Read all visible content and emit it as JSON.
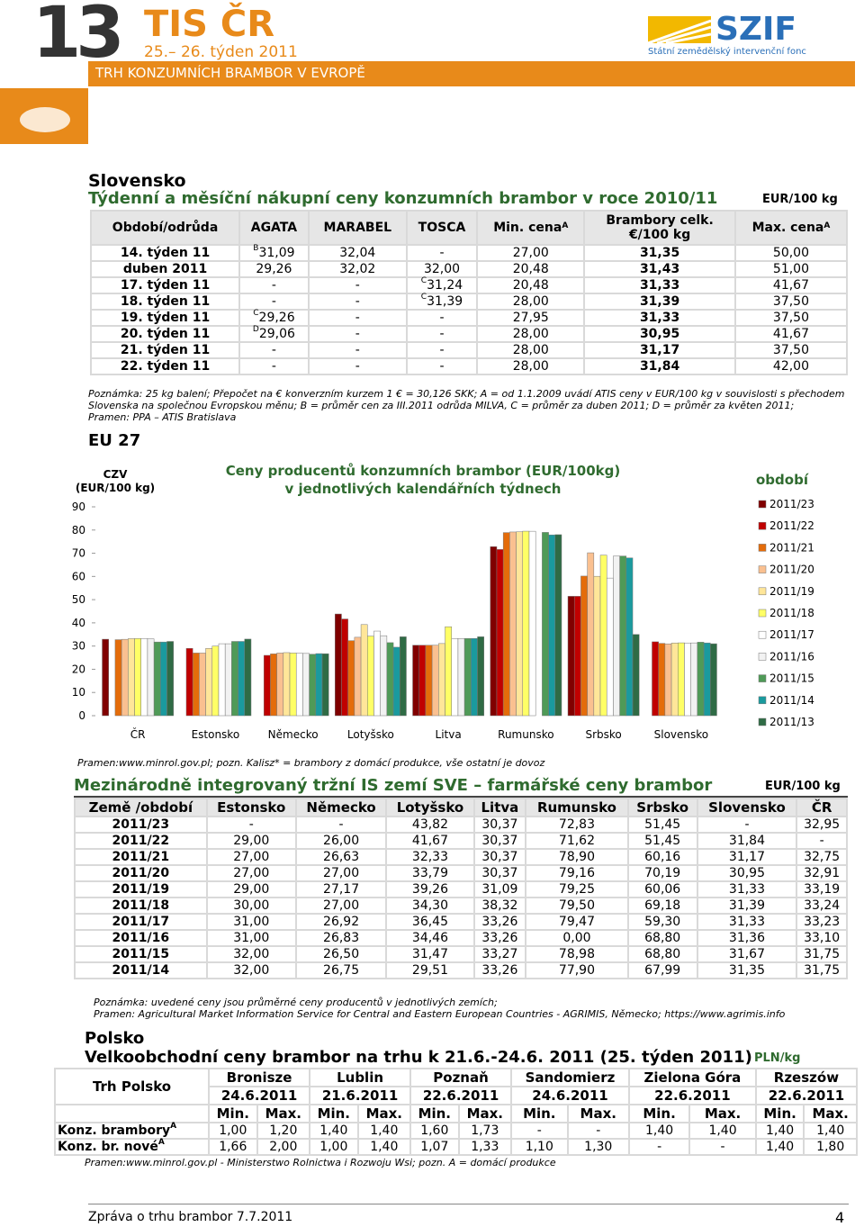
{
  "header": {
    "number": "13",
    "brand": "TIS ČR",
    "weeks": "25.– 26. týden 2011",
    "subtitle": "TRH KONZUMNÍCH BRAMBOR V EVROPĚ",
    "logo": "SZIF",
    "logo_text": "Státní zemědělský intervenční fonc"
  },
  "slovensko": {
    "country": "Slovensko",
    "title": "Týdenní a měsíční nákupní ceny konzumních brambor v roce 2010/11",
    "unit": "EUR/100 kg",
    "columns": [
      "Období/odrůda",
      "AGATA",
      "MARABEL",
      "TOSCA",
      {
        "text": "Min. cena",
        "sup": "A"
      },
      {
        "lines": [
          "Brambory celk.",
          "€/100 kg"
        ]
      },
      {
        "text": "Max. cena",
        "sup": "A"
      }
    ],
    "rows": [
      [
        "14. týden 11",
        {
          "sup_before": "B",
          "text": "31,09"
        },
        "32,04",
        "-",
        "27,00",
        "31,35",
        "50,00"
      ],
      [
        "duben 2011",
        "29,26",
        "32,02",
        "32,00",
        "20,48",
        "31,43",
        "51,00"
      ],
      [
        "17. týden 11",
        "-",
        "-",
        {
          "sup_before": "C",
          "text": "31,24"
        },
        "20,48",
        "31,33",
        "41,67"
      ],
      [
        "18. týden 11",
        "-",
        "-",
        {
          "sup_before": "C",
          "text": "31,39"
        },
        "28,00",
        "31,39",
        "37,50"
      ],
      [
        "19. týden 11",
        {
          "sup_before": "C",
          "text": "29,26"
        },
        "-",
        "-",
        "27,95",
        "31,33",
        "37,50"
      ],
      [
        "20. týden 11",
        {
          "sup_before": "D",
          "text": "29,06"
        },
        "-",
        "-",
        "28,00",
        "30,95",
        "41,67"
      ],
      [
        "21. týden 11",
        "-",
        "-",
        "-",
        "28,00",
        "31,17",
        "37,50"
      ],
      [
        "22. týden 11",
        "-",
        "-",
        "-",
        "28,00",
        "31,84",
        "42,00"
      ]
    ],
    "note": "Poznámka: 25 kg balení; Přepočet na € konverzním kurzem 1 € = 30,126 SKK; A = od 1.1.2009 uvádí ATIS ceny v EUR/100 kg v souvislosti s přechodem Slovenska na společnou Evropskou měnu; B = průměr cen za III.2011 odrůda MILVA, C = průměr za duben 2011; D = průměr za květen 2011;",
    "source": "Pramen: PPA – ATIS Bratislava"
  },
  "eu_heading": "EU 27",
  "chart_data": {
    "type": "bar",
    "title": [
      "Ceny producentů konzumních brambor (EUR/100kg)",
      "v jednotlivých kalendářních týdnech"
    ],
    "y_label": [
      "CZV",
      "(EUR/100 kg)"
    ],
    "legend_title": "období",
    "categories": [
      "ČR",
      "Estonsko",
      "Německo",
      "Lotyšsko",
      "Litva",
      "Rumunsko",
      "Srbsko",
      "Slovensko"
    ],
    "ylim": [
      0,
      90
    ],
    "yticks": [
      0,
      10,
      20,
      30,
      40,
      50,
      60,
      70,
      80,
      90
    ],
    "series": [
      {
        "name": "2011/23",
        "color": "#800000",
        "values": [
          32.95,
          null,
          null,
          43.82,
          30.37,
          72.83,
          51.45,
          null
        ]
      },
      {
        "name": "2011/22",
        "color": "#c00000",
        "values": [
          null,
          29.0,
          26.0,
          41.67,
          30.37,
          71.62,
          51.45,
          31.84
        ]
      },
      {
        "name": "2011/21",
        "color": "#e46c0a",
        "values": [
          32.75,
          27.0,
          26.63,
          32.33,
          30.37,
          78.9,
          60.16,
          31.17
        ]
      },
      {
        "name": "2011/20",
        "color": "#fac090",
        "values": [
          32.91,
          27.0,
          27.0,
          33.79,
          30.37,
          79.16,
          70.19,
          30.95
        ]
      },
      {
        "name": "2011/19",
        "color": "#ffe699",
        "values": [
          33.19,
          29.0,
          27.17,
          39.26,
          31.09,
          79.25,
          60.06,
          31.33
        ]
      },
      {
        "name": "2011/18",
        "color": "#ffff66",
        "values": [
          33.24,
          30.0,
          27.0,
          34.3,
          38.32,
          79.5,
          69.18,
          31.39
        ]
      },
      {
        "name": "2011/17",
        "color": "#ffffff",
        "values": [
          33.23,
          31.0,
          26.92,
          36.45,
          33.26,
          79.47,
          59.3,
          31.33
        ]
      },
      {
        "name": "2011/16",
        "color": "#f2f2f2",
        "values": [
          33.1,
          31.0,
          26.83,
          34.46,
          33.26,
          0.0,
          68.8,
          31.36
        ]
      },
      {
        "name": "2011/15",
        "color": "#4f9a57",
        "values": [
          31.75,
          32.0,
          26.5,
          31.47,
          33.27,
          78.98,
          68.8,
          31.67
        ]
      },
      {
        "name": "2011/14",
        "color": "#1a9a9e",
        "values": [
          31.75,
          32.0,
          26.75,
          29.51,
          33.26,
          77.9,
          67.99,
          31.35
        ]
      },
      {
        "name": "2011/13",
        "color": "#2f6b45",
        "values": [
          32,
          33,
          26.7,
          34,
          34,
          78,
          35,
          31
        ]
      }
    ],
    "source": "Pramen:www.minrol.gov.pl; pozn. Kalisz* = brambory z domácí produkce, vše ostatní je dovoz"
  },
  "sve": {
    "title": "Mezinárodně integrovaný tržní IS zemí SVE – farmářské ceny brambor",
    "unit": "EUR/100 kg",
    "columns": [
      "Země /období",
      "Estonsko",
      "Německo",
      "Lotyšsko",
      "Litva",
      "Rumunsko",
      "Srbsko",
      "Slovensko",
      "ČR"
    ],
    "rows": [
      [
        "2011/23",
        "-",
        "-",
        "43,82",
        "30,37",
        "72,83",
        "51,45",
        "-",
        "32,95"
      ],
      [
        "2011/22",
        "29,00",
        "26,00",
        "41,67",
        "30,37",
        "71,62",
        "51,45",
        "31,84",
        "-"
      ],
      [
        "2011/21",
        "27,00",
        "26,63",
        "32,33",
        "30,37",
        "78,90",
        "60,16",
        "31,17",
        "32,75"
      ],
      [
        "2011/20",
        "27,00",
        "27,00",
        "33,79",
        "30,37",
        "79,16",
        "70,19",
        "30,95",
        "32,91"
      ],
      [
        "2011/19",
        "29,00",
        "27,17",
        "39,26",
        "31,09",
        "79,25",
        "60,06",
        "31,33",
        "33,19"
      ],
      [
        "2011/18",
        "30,00",
        "27,00",
        "34,30",
        "38,32",
        "79,50",
        "69,18",
        "31,39",
        "33,24"
      ],
      [
        "2011/17",
        "31,00",
        "26,92",
        "36,45",
        "33,26",
        "79,47",
        "59,30",
        "31,33",
        "33,23"
      ],
      [
        "2011/16",
        "31,00",
        "26,83",
        "34,46",
        "33,26",
        "0,00",
        "68,80",
        "31,36",
        "33,10"
      ],
      [
        "2011/15",
        "32,00",
        "26,50",
        "31,47",
        "33,27",
        "78,98",
        "68,80",
        "31,67",
        "31,75"
      ],
      [
        "2011/14",
        "32,00",
        "26,75",
        "29,51",
        "33,26",
        "77,90",
        "67,99",
        "31,35",
        "31,75"
      ]
    ],
    "note": "Poznámka: uvedené ceny jsou průměrné ceny producentů v jednotlivých zemích;",
    "source": "Pramen: Agricultural Market Information Service for Central and Eastern European Countries - AGRIMIS, Německo; https://www.agrimis.info"
  },
  "polsko": {
    "country": "Polsko",
    "title": "Velkoobchodní ceny brambor na trhu k 21.6.-24.6. 2011 (25. týden 2011)",
    "unit": "PLN/kg",
    "corner": "Trh Polsko",
    "min_label": "Min.",
    "max_label": "Max.",
    "markets": [
      {
        "name": "Bronisze",
        "date": "24.6.2011"
      },
      {
        "name": "Lublin",
        "date": "21.6.2011"
      },
      {
        "name": "Poznaň",
        "date": "22.6.2011"
      },
      {
        "name": "Sandomierz",
        "date": "24.6.2011"
      },
      {
        "name": "Zielona Góra",
        "date": "22.6.2011"
      },
      {
        "name": "Rzeszów",
        "date": "22.6.2011"
      }
    ],
    "rows": [
      {
        "label": "Konz. brambory",
        "sup": "A",
        "values": [
          "1,00",
          "1,20",
          "1,40",
          "1,40",
          "1,60",
          "1,73",
          "-",
          "-",
          "1,40",
          "1,40",
          "1,40",
          "1,40"
        ]
      },
      {
        "label": "Konz. br. nové",
        "sup": "A",
        "values": [
          "1,66",
          "2,00",
          "1,00",
          "1,40",
          "1,07",
          "1,33",
          "1,10",
          "1,30",
          "-",
          "-",
          "1,40",
          "1,80"
        ]
      }
    ],
    "source": "Pramen:www.minrol.gov.pl - Ministerstwo Rolnictwa i Rozwoju Wsi; pozn. A = domácí produkce"
  },
  "footer": {
    "text": "Zpráva o trhu brambor 7.7.2011",
    "page": "4"
  }
}
